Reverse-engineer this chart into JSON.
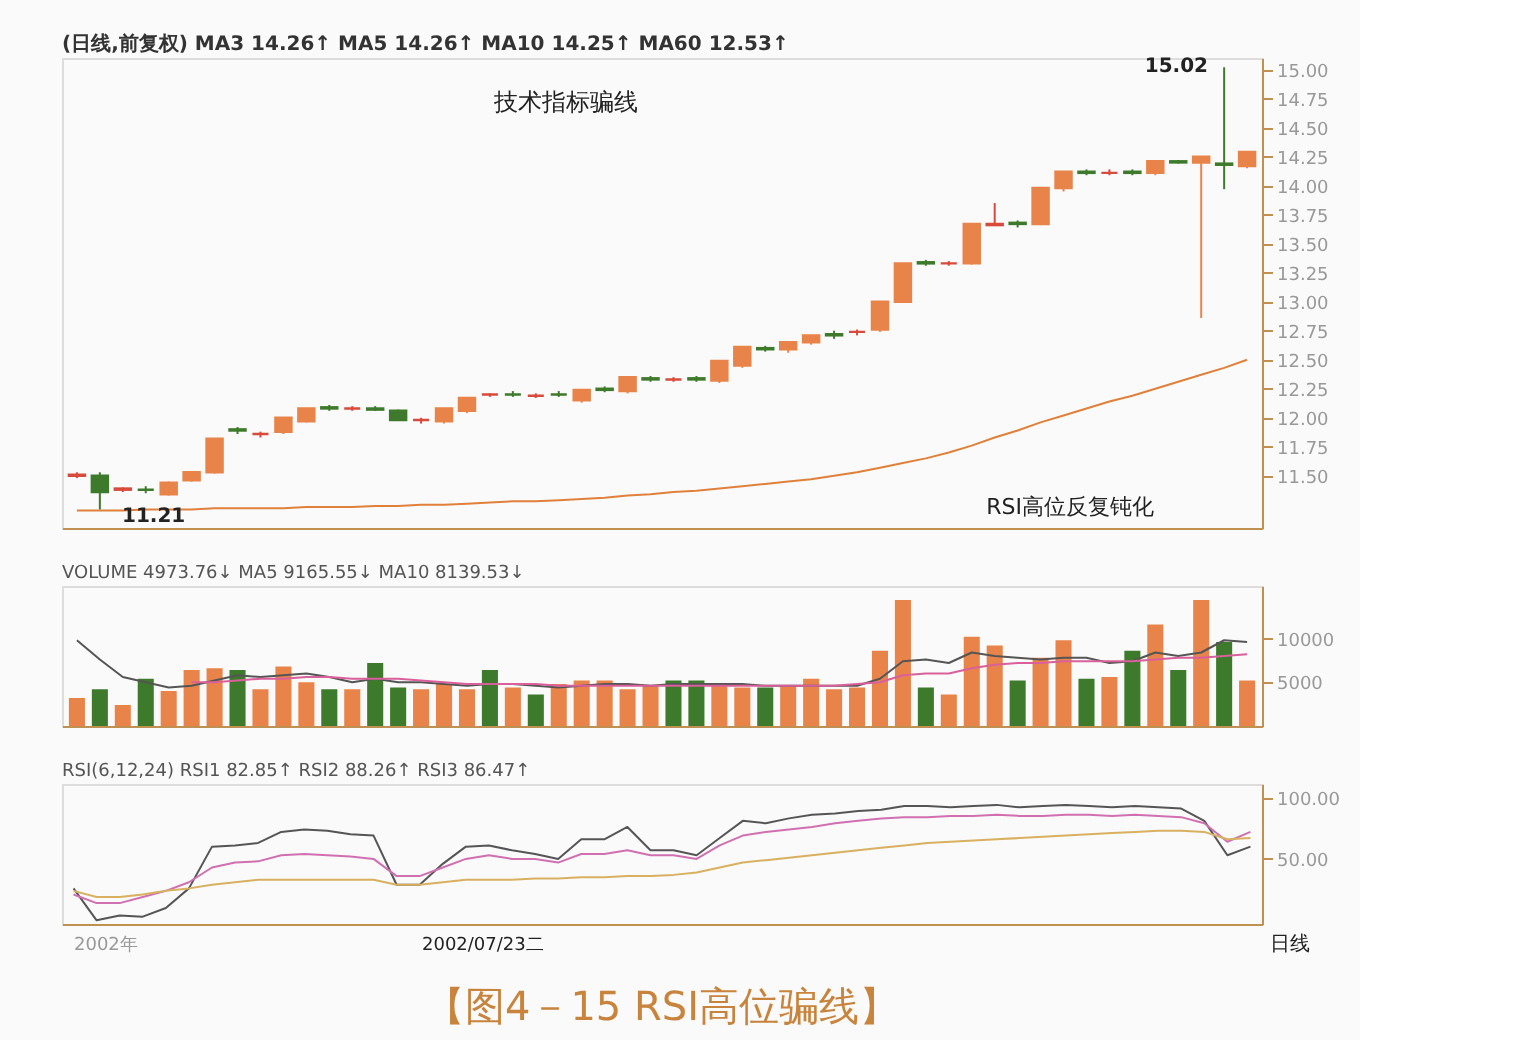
{
  "chart_data": [
    {
      "type": "candlestick",
      "categories": [
        null,
        null,
        null,
        null,
        null,
        null,
        null,
        null,
        null,
        null,
        null,
        null,
        null,
        null,
        null,
        null,
        null,
        null,
        null,
        null,
        null,
        null,
        null,
        null,
        null,
        null,
        null,
        null,
        null,
        null,
        null,
        null,
        null,
        null,
        null,
        null,
        null,
        null,
        null,
        null,
        null,
        null,
        null,
        null,
        null,
        null,
        null,
        null,
        null,
        null,
        null,
        null
      ],
      "ohlc": [
        [
          11.51,
          11.53,
          11.48,
          11.5
        ],
        [
          11.5,
          11.53,
          11.21,
          11.36
        ],
        [
          11.38,
          11.4,
          11.36,
          11.39
        ],
        [
          11.38,
          11.41,
          11.35,
          11.38
        ],
        [
          11.34,
          11.45,
          11.33,
          11.44
        ],
        [
          11.46,
          11.54,
          11.45,
          11.53
        ],
        [
          11.53,
          11.82,
          11.52,
          11.82
        ],
        [
          11.9,
          11.92,
          11.86,
          11.89
        ],
        [
          11.86,
          11.88,
          11.83,
          11.86
        ],
        [
          11.88,
          12.0,
          11.86,
          12.0
        ],
        [
          11.97,
          12.08,
          11.96,
          12.08
        ],
        [
          12.09,
          12.11,
          12.06,
          12.08
        ],
        [
          12.08,
          12.1,
          12.06,
          12.08
        ],
        [
          12.08,
          12.1,
          12.06,
          12.07
        ],
        [
          12.06,
          12.07,
          11.98,
          11.98
        ],
        [
          11.98,
          12.0,
          11.95,
          11.98
        ],
        [
          11.97,
          12.08,
          11.95,
          12.08
        ],
        [
          12.06,
          12.17,
          12.04,
          12.17
        ],
        [
          12.2,
          12.21,
          12.18,
          12.2
        ],
        [
          12.2,
          12.23,
          12.18,
          12.2
        ],
        [
          12.19,
          12.21,
          12.17,
          12.19
        ],
        [
          12.2,
          12.23,
          12.18,
          12.2
        ],
        [
          12.15,
          12.24,
          12.13,
          12.24
        ],
        [
          12.25,
          12.27,
          12.22,
          12.24
        ],
        [
          12.23,
          12.35,
          12.21,
          12.35
        ],
        [
          12.34,
          12.36,
          12.31,
          12.33
        ],
        [
          12.33,
          12.35,
          12.31,
          12.33
        ],
        [
          12.34,
          12.36,
          12.31,
          12.33
        ],
        [
          12.32,
          12.49,
          12.3,
          12.49
        ],
        [
          12.45,
          12.61,
          12.43,
          12.61
        ],
        [
          12.6,
          12.62,
          12.57,
          12.59
        ],
        [
          12.59,
          12.65,
          12.56,
          12.65
        ],
        [
          12.65,
          12.71,
          12.63,
          12.71
        ],
        [
          12.72,
          12.75,
          12.68,
          12.71
        ],
        [
          12.74,
          12.76,
          12.71,
          12.74
        ],
        [
          12.76,
          13.0,
          12.74,
          13.0
        ],
        [
          13.0,
          13.33,
          12.99,
          13.33
        ],
        [
          13.34,
          13.36,
          13.31,
          13.33
        ],
        [
          13.33,
          13.35,
          13.31,
          13.33
        ],
        [
          13.33,
          13.67,
          13.32,
          13.67
        ],
        [
          13.67,
          13.85,
          13.66,
          13.66
        ],
        [
          13.68,
          13.7,
          13.64,
          13.67
        ],
        [
          13.67,
          13.98,
          13.66,
          13.98
        ],
        [
          13.98,
          14.12,
          13.95,
          14.12
        ],
        [
          14.12,
          14.14,
          14.09,
          14.11
        ],
        [
          14.11,
          14.14,
          14.09,
          14.11
        ],
        [
          14.12,
          14.14,
          14.09,
          14.11
        ],
        [
          14.11,
          14.21,
          14.09,
          14.21
        ],
        [
          14.21,
          14.22,
          14.19,
          14.2
        ],
        [
          14.2,
          14.25,
          12.86,
          14.25
        ],
        [
          14.19,
          15.02,
          13.97,
          14.18
        ],
        [
          14.17,
          14.29,
          14.15,
          14.29
        ]
      ],
      "colors": [
        "#d84a3a",
        "#3d7a2b",
        "#d84a3a",
        "#3d7a2b",
        "#e8844a",
        "#e8844a",
        "#e8844a",
        "#3d7a2b",
        "#d84a3a",
        "#e8844a",
        "#e8844a",
        "#3d7a2b",
        "#d84a3a",
        "#3d7a2b",
        "#3d7a2b",
        "#d84a3a",
        "#e8844a",
        "#e8844a",
        "#d84a3a",
        "#3d7a2b",
        "#d84a3a",
        "#3d7a2b",
        "#e8844a",
        "#3d7a2b",
        "#e8844a",
        "#3d7a2b",
        "#d84a3a",
        "#3d7a2b",
        "#e8844a",
        "#e8844a",
        "#3d7a2b",
        "#e8844a",
        "#e8844a",
        "#3d7a2b",
        "#d84a3a",
        "#e8844a",
        "#e8844a",
        "#3d7a2b",
        "#d84a3a",
        "#e8844a",
        "#d84a3a",
        "#3d7a2b",
        "#e8844a",
        "#e8844a",
        "#3d7a2b",
        "#d84a3a",
        "#3d7a2b",
        "#e8844a",
        "#3d7a2b",
        "#e8844a",
        "#3d7a2b",
        "#e8844a"
      ],
      "series": [
        {
          "type": "line",
          "color": "#e0803a",
          "values": [
            11.2,
            11.2,
            11.2,
            11.21,
            11.21,
            11.21,
            11.22,
            11.22,
            11.22,
            11.22,
            11.23,
            11.23,
            11.23,
            11.24,
            11.24,
            11.25,
            11.25,
            11.26,
            11.27,
            11.28,
            11.28,
            11.29,
            11.3,
            11.31,
            11.33,
            11.34,
            11.36,
            11.37,
            11.39,
            11.41,
            11.43,
            11.45,
            11.47,
            11.5,
            11.53,
            11.57,
            11.61,
            11.65,
            11.7,
            11.76,
            11.83,
            11.89,
            11.96,
            12.02,
            12.08,
            12.14,
            12.19,
            12.25,
            12.31,
            12.37,
            12.43,
            12.5
          ]
        }
      ],
      "ylim": [
        11.05,
        15.1
      ],
      "yticks": [
        {
          "value": 11.5,
          "label": "11.50"
        },
        {
          "value": 11.75,
          "label": "11.75"
        },
        {
          "value": 12,
          "label": "12.00"
        },
        {
          "value": 12.25,
          "label": "12.25"
        },
        {
          "value": 12.5,
          "label": "12.50"
        },
        {
          "value": 12.75,
          "label": "12.75"
        },
        {
          "value": 13,
          "label": "13.00"
        },
        {
          "value": 13.25,
          "label": "13.25"
        },
        {
          "value": 13.5,
          "label": "13.50"
        },
        {
          "value": 13.75,
          "label": "13.75"
        },
        {
          "value": 14,
          "label": "14.00"
        },
        {
          "value": 14.25,
          "label": "14.25"
        },
        {
          "value": 14.5,
          "label": "14.50"
        },
        {
          "value": 14.75,
          "label": "14.75"
        },
        {
          "value": 15,
          "label": "15.00"
        }
      ],
      "tick_labels": "y",
      "annotations": [
        "(日线,前复权) MA3 14.26↑ MA5 14.26↑ MA10 14.25↑ MA60 12.53↑",
        "技术指标骗线",
        "RSI高位反复钝化",
        "15.02",
        "11.21"
      ]
    },
    {
      "type": "bar",
      "categories": [
        null,
        null,
        null,
        null,
        null,
        null,
        null,
        null,
        null,
        null,
        null,
        null,
        null,
        null,
        null,
        null,
        null,
        null,
        null,
        null,
        null,
        null,
        null,
        null,
        null,
        null,
        null,
        null,
        null,
        null,
        null,
        null,
        null,
        null,
        null,
        null,
        null,
        null,
        null,
        null,
        null,
        null,
        null,
        null,
        null,
        null,
        null,
        null,
        null,
        null,
        null,
        null
      ],
      "series": [
        {
          "type": "bar",
          "colors": [
            "#e8844a",
            "#3d7a2b",
            "#e8844a",
            "#3d7a2b",
            "#e8844a",
            "#e8844a",
            "#e8844a",
            "#3d7a2b",
            "#e8844a",
            "#e8844a",
            "#e8844a",
            "#3d7a2b",
            "#e8844a",
            "#3d7a2b",
            "#3d7a2b",
            "#e8844a",
            "#e8844a",
            "#e8844a",
            "#3d7a2b",
            "#e8844a",
            "#3d7a2b",
            "#e8844a",
            "#e8844a",
            "#e8844a",
            "#e8844a",
            "#e8844a",
            "#3d7a2b",
            "#3d7a2b",
            "#e8844a",
            "#e8844a",
            "#3d7a2b",
            "#e8844a",
            "#e8844a",
            "#e8844a",
            "#e8844a",
            "#e8844a",
            "#e8844a",
            "#3d7a2b",
            "#e8844a",
            "#e8844a",
            "#e8844a",
            "#3d7a2b",
            "#e8844a",
            "#e8844a",
            "#3d7a2b",
            "#e8844a",
            "#3d7a2b",
            "#e8844a",
            "#3d7a2b",
            "#e8844a",
            "#3d7a2b",
            "#e8844a"
          ],
          "values": [
            3200,
            4200,
            2400,
            5400,
            4000,
            6400,
            6600,
            6400,
            4200,
            6800,
            5000,
            4200,
            4200,
            7200,
            4400,
            4200,
            4800,
            4200,
            6400,
            4400,
            3600,
            4800,
            5200,
            5200,
            4200,
            4600,
            5200,
            5200,
            4600,
            4400,
            4400,
            4600,
            5400,
            4200,
            4400,
            8600,
            14400,
            4400,
            3600,
            10200,
            9200,
            5200,
            7800,
            9800,
            5400,
            5600,
            8600,
            11600,
            6400,
            14400,
            9600,
            5200
          ]
        },
        {
          "type": "line",
          "color": "#555555",
          "values": [
            9800,
            7600,
            5600,
            5000,
            4400,
            4600,
            5200,
            5800,
            5600,
            5800,
            6000,
            5600,
            5000,
            5400,
            5000,
            5000,
            4800,
            4600,
            4800,
            4800,
            4600,
            4400,
            4600,
            4800,
            4800,
            4600,
            4800,
            4800,
            4800,
            4800,
            4600,
            4600,
            4600,
            4600,
            4600,
            5400,
            7400,
            7600,
            7200,
            8400,
            8000,
            7800,
            7600,
            7800,
            7800,
            7200,
            7400,
            8400,
            8000,
            8400,
            9800,
            9600
          ]
        },
        {
          "type": "line",
          "color": "#d9609a",
          "values": [
            null,
            null,
            null,
            null,
            null,
            5000,
            5000,
            5200,
            5400,
            5400,
            5600,
            5600,
            5400,
            5400,
            5400,
            5200,
            5000,
            4800,
            4800,
            4800,
            4800,
            4600,
            4600,
            4600,
            4600,
            4600,
            4600,
            4600,
            4600,
            4600,
            4600,
            4600,
            4600,
            4600,
            4800,
            5000,
            5800,
            6000,
            6000,
            6600,
            7000,
            7200,
            7200,
            7400,
            7400,
            7400,
            7400,
            7600,
            7800,
            7800,
            8000,
            8200
          ]
        }
      ],
      "ylim": [
        0,
        16000
      ],
      "yticks": [
        5000,
        10000
      ],
      "tick_labels": "y",
      "annotations": [
        "VOLUME 4973.76↓ MA5 9165.55↓ MA10 8139.53↓"
      ]
    },
    {
      "type": "line",
      "categories": [
        null,
        null,
        null,
        null,
        null,
        null,
        null,
        null,
        null,
        null,
        null,
        null,
        null,
        null,
        null,
        null,
        null,
        null,
        null,
        null,
        null,
        null,
        null,
        null,
        null,
        null,
        null,
        null,
        null,
        null,
        null,
        null,
        null,
        null,
        null,
        null,
        null,
        null,
        null,
        null,
        null,
        null,
        null,
        null,
        null,
        null,
        null,
        null,
        null,
        null,
        null,
        null
      ],
      "series": [
        {
          "color": "#555555",
          "values": [
            26,
            0,
            4,
            3,
            10,
            26,
            60,
            61,
            63,
            72,
            74,
            73,
            70,
            69,
            29,
            29,
            46,
            60,
            61,
            57,
            54,
            50,
            66,
            66,
            76,
            57,
            57,
            53,
            67,
            81,
            79,
            83,
            86,
            87,
            89,
            90,
            93,
            93,
            92,
            93,
            94,
            92,
            93,
            94,
            93,
            92,
            93,
            92,
            91,
            81,
            53,
            60
          ]
        },
        {
          "color": "#d070b0",
          "values": [
            21,
            14,
            14,
            19,
            24,
            31,
            43,
            47,
            48,
            53,
            54,
            53,
            52,
            50,
            36,
            36,
            43,
            50,
            53,
            50,
            50,
            47,
            54,
            54,
            57,
            53,
            53,
            50,
            61,
            69,
            72,
            74,
            76,
            79,
            81,
            83,
            84,
            84,
            85,
            85,
            86,
            85,
            85,
            86,
            86,
            85,
            86,
            85,
            84,
            79,
            64,
            72
          ]
        },
        {
          "color": "#d8b060",
          "values": [
            24,
            19,
            19,
            21,
            24,
            26,
            29,
            31,
            33,
            33,
            33,
            33,
            33,
            33,
            29,
            29,
            31,
            33,
            33,
            33,
            34,
            34,
            35,
            35,
            36,
            36,
            37,
            39,
            43,
            47,
            49,
            51,
            53,
            55,
            57,
            59,
            61,
            63,
            64,
            65,
            66,
            67,
            68,
            69,
            70,
            71,
            72,
            73,
            73,
            72,
            66,
            67
          ]
        }
      ],
      "ylim": [
        -3,
        111
      ],
      "yticks": [
        {
          "value": 50,
          "label": "50.00"
        },
        {
          "value": 100,
          "label": "100.00"
        }
      ],
      "tick_labels": "y",
      "annotations": [
        "RSI(6,12,24) RSI1 82.85↑ RSI2 88.26↑ RSI3 86.47↑",
        "2002年",
        "2002/07/23二",
        "日线",
        "【图4－15   RSI高位骗线】"
      ]
    }
  ]
}
